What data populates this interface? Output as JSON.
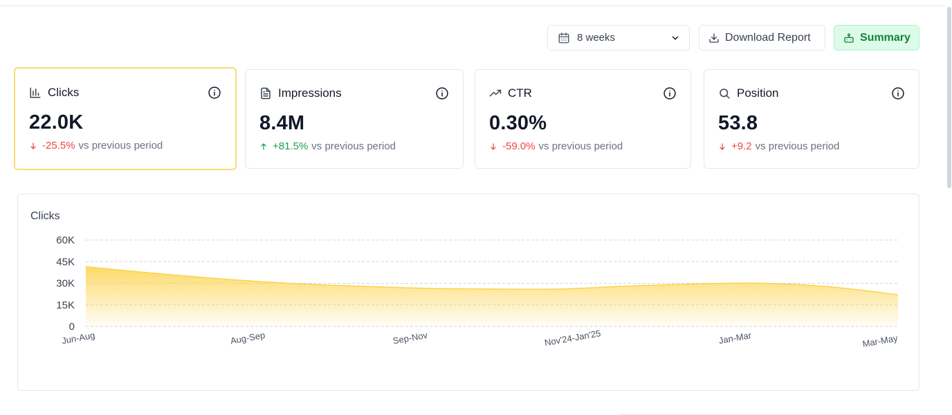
{
  "toolbar": {
    "range_value": "8 weeks",
    "download_label": "Download Report",
    "summary_label": "Summary"
  },
  "cards": [
    {
      "label": "Clicks",
      "value": "22.0K",
      "delta": "-25.5%",
      "direction": "down",
      "color": "#ef4444",
      "comparison": "vs previous period"
    },
    {
      "label": "Impressions",
      "value": "8.4M",
      "delta": "+81.5%",
      "direction": "up",
      "color": "#16a34a",
      "comparison": "vs previous period"
    },
    {
      "label": "CTR",
      "value": "0.30%",
      "delta": "-59.0%",
      "direction": "down",
      "color": "#ef4444",
      "comparison": "vs previous period"
    },
    {
      "label": "Position",
      "value": "53.8",
      "delta": "+9.2",
      "direction": "down",
      "color": "#ef4444",
      "comparison": "vs previous period"
    }
  ],
  "colors": {
    "accent": "#fcd34d",
    "active_card_border": "#fcd977",
    "positive": "#16a34a",
    "negative": "#ef4444",
    "summary_bg": "#dcfce7"
  },
  "chart_data": {
    "type": "area",
    "title": "Clicks",
    "xlabel": "",
    "ylabel": "",
    "ylim": [
      0,
      60000
    ],
    "y_ticks": [
      0,
      15000,
      30000,
      45000,
      60000
    ],
    "y_tick_labels": [
      "0",
      "15K",
      "30K",
      "45K",
      "60K"
    ],
    "grid": true,
    "legend": "none",
    "x_tick_labels": [
      "Jun-Aug",
      "Aug-Sep",
      "Sep-Nov",
      "Nov'24-Jan'25",
      "Jan-Mar",
      "Mar-May"
    ],
    "series": [
      {
        "name": "Clicks",
        "color": "#fcd34d",
        "x": [
          0,
          1,
          2,
          3,
          4,
          5,
          6,
          7,
          8,
          9,
          10,
          11,
          12
        ],
        "values": [
          41500,
          37000,
          33000,
          30000,
          28000,
          26500,
          26000,
          26000,
          28000,
          29500,
          30000,
          27500,
          22000
        ]
      }
    ]
  }
}
